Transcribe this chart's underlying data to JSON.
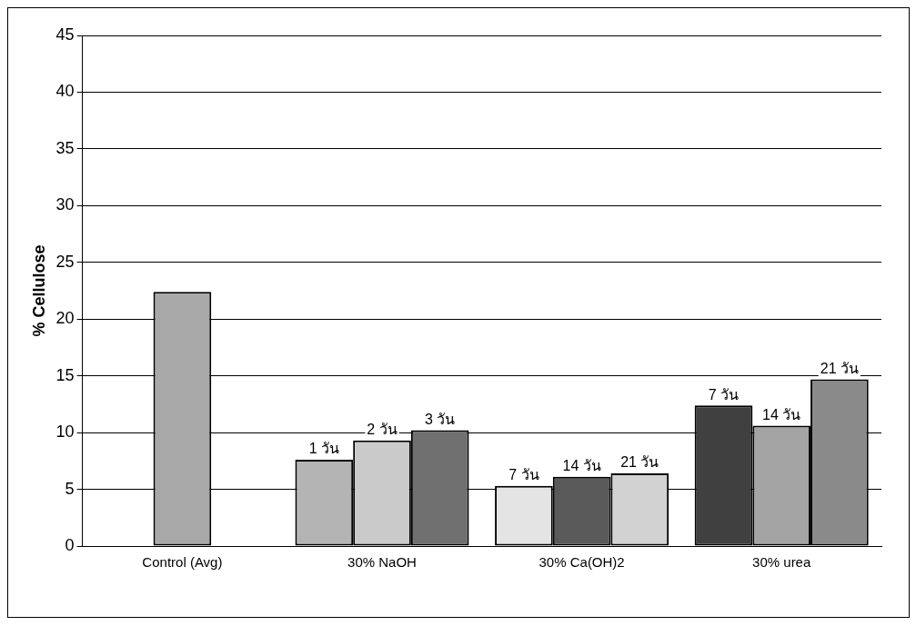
{
  "chart_data": {
    "type": "bar",
    "ylabel": "% Cellulose",
    "categories": [
      "Control (Avg)",
      "30% NaOH",
      "30% Ca(OH)2",
      "30% urea"
    ],
    "series": [
      {
        "colors": [
          "#a8a8a8",
          "#b4b4b4",
          "#e4e4e4",
          "#404040"
        ],
        "values": [
          null,
          7.6,
          5.3,
          12.4
        ]
      },
      {
        "colors": [
          "#a8a8a8",
          "#cacaca",
          "#5a5a5a",
          "#a4a4a4"
        ],
        "values": [
          22.4,
          9.3,
          6.1,
          10.6
        ]
      },
      {
        "colors": [
          "#a8a8a8",
          "#707070",
          "#d2d2d2",
          "#8a8a8a"
        ],
        "values": [
          null,
          10.2,
          6.4,
          14.7
        ]
      }
    ],
    "annotations": [
      "1 วัน",
      "2 วัน",
      "3 วัน",
      "7 วัน",
      "14 วัน",
      "21 วัน",
      "7 วัน",
      "14 วัน",
      "21 วัน"
    ],
    "ylim": [
      0,
      45
    ],
    "yticks": [
      0,
      5,
      10,
      15,
      20,
      25,
      30,
      35,
      40,
      45
    ],
    "grid": "y",
    "legend": false
  }
}
